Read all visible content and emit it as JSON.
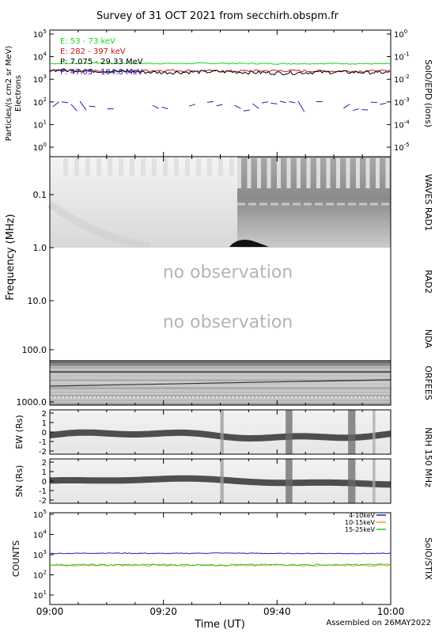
{
  "title": "Survey of 31 OCT 2021 from secchirh.obspm.fr",
  "footer": {
    "assembled": "Assembled on 26MAY2022"
  },
  "x_axis": {
    "label": "Time (UT)",
    "ticks": [
      "09:00",
      "09:20",
      "09:40",
      "10:00"
    ],
    "range_minutes": [
      0,
      60
    ]
  },
  "panels": {
    "epd": {
      "right_label": "SolO/EPD (ions)",
      "left_label_1": "Particles/(s cm2 sr MeV)",
      "left_label_2": "Electrons",
      "left_ticks": [
        "10^5",
        "10^4",
        "10^3",
        "10^2",
        "10^1",
        "10^0"
      ],
      "right_ticks": [
        "10^0",
        "10^-1",
        "10^-2",
        "10^-3",
        "10^-4",
        "10^-5"
      ]
    },
    "rad1": {
      "right_label": "WAVES RAD1"
    },
    "rad2": {
      "right_label": "RAD2",
      "note": "no observation"
    },
    "nda": {
      "right_label": "NDA",
      "note": "no observation"
    },
    "orfees": {
      "right_label": "ORFEES"
    },
    "freq_axis": {
      "label": "Frequency (MHz)",
      "ticks": [
        "0.1",
        "1.0",
        "10.0",
        "100.0",
        "1000.0"
      ]
    },
    "nrh": {
      "right_label": "NRH 150 MHz",
      "ew_label": "EW (Rs)",
      "sn_label": "SN (Rs)",
      "ticks": [
        "2",
        "1",
        "0",
        "-1",
        "-2"
      ]
    },
    "stix": {
      "right_label": "SolO/STIX",
      "left_label": "COUNTS",
      "ticks": [
        "10^5",
        "10^4",
        "10^3",
        "10^2",
        "10^1"
      ]
    }
  },
  "colors": {
    "green": "#19d21e",
    "red": "#c81414",
    "black": "#000000",
    "blue": "#1e1eb4",
    "orange": "#f0a01e",
    "grey_text": "#b4b4b4"
  },
  "chart_data": [
    {
      "type": "line",
      "panel": "SolO/EPD",
      "log_y": true,
      "ylim": [
        1,
        100000
      ],
      "x_unit": "minutes after 09:00",
      "series": [
        {
          "name": "E: 53 - 73 keV",
          "color": "#19d21e",
          "x": [
            0,
            10,
            20,
            30,
            40,
            50,
            60
          ],
          "values": [
            5000,
            5200,
            5000,
            5100,
            4900,
            5000,
            4800
          ]
        },
        {
          "name": "E: 282 - 397 keV",
          "color": "#c81414",
          "x": [
            0,
            10,
            20,
            30,
            40,
            50,
            60
          ],
          "values": [
            2400,
            2300,
            2500,
            2300,
            2400,
            2300,
            2300
          ]
        },
        {
          "name": "P: 7.075 - 29.33 MeV",
          "color": "#000000",
          "x": [
            0,
            10,
            20,
            30,
            40,
            50,
            60
          ],
          "values": [
            2600,
            2300,
            2000,
            2200,
            1900,
            2100,
            2000
          ]
        },
        {
          "name": "P: 47.05 - 104.8 MeV",
          "color": "#1e1eb4",
          "x": [
            0,
            10,
            20,
            30,
            40,
            50,
            60
          ],
          "values": [
            70,
            60,
            80,
            60,
            70,
            60,
            70
          ]
        }
      ]
    },
    {
      "type": "heatmap",
      "panel": "WAVES RAD1",
      "y_label": "Frequency (MHz)",
      "ylim": [
        1.0,
        0.02
      ],
      "log_y": true
    },
    {
      "type": "heatmap",
      "panel": "ORFEES",
      "ylim": [
        150,
        1000
      ],
      "log_y": true
    },
    {
      "type": "heatmap",
      "panel": "NRH 150 MHz EW",
      "y_label": "EW (Rs)",
      "ylim": [
        -2,
        2
      ]
    },
    {
      "type": "heatmap",
      "panel": "NRH 150 MHz SN",
      "y_label": "SN (Rs)",
      "ylim": [
        -2,
        2
      ]
    },
    {
      "type": "line",
      "panel": "SolO/STIX",
      "log_y": true,
      "ylim": [
        10,
        100000
      ],
      "x_unit": "minutes after 09:00",
      "series": [
        {
          "name": "4-10keV",
          "color": "#1e1eb4",
          "x": [
            0,
            10,
            20,
            30,
            40,
            50,
            60
          ],
          "values": [
            1150,
            1200,
            1150,
            1200,
            1150,
            1150,
            1150
          ]
        },
        {
          "name": "10-15keV",
          "color": "#f0a01e",
          "x": [
            0,
            10,
            20,
            30,
            40,
            50,
            60
          ],
          "values": [
            290,
            300,
            290,
            300,
            300,
            290,
            290
          ]
        },
        {
          "name": "15-25keV",
          "color": "#19d21e",
          "x": [
            0,
            10,
            20,
            30,
            40,
            50,
            60
          ],
          "values": [
            320,
            310,
            320,
            310,
            320,
            310,
            330
          ]
        }
      ]
    }
  ]
}
